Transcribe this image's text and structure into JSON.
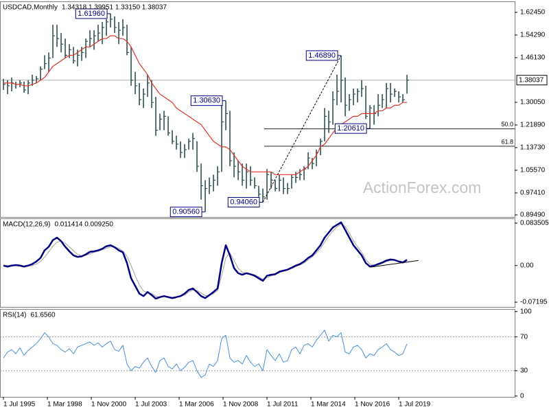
{
  "chart_data": [
    {
      "type": "ohlc",
      "title": "USDCAD,Monthly",
      "subtitle": "1.34318 1.39951 1.33150 1.38037",
      "watermark": "ActionForex.com",
      "color": "#2f4f4f",
      "ma_color": "#e0332b",
      "xlim": [
        1995.29,
        2026.54
      ],
      "xticks": [
        {
          "value": 1995.5,
          "label": "1 Jul 1995"
        },
        {
          "value": 1998.167,
          "label": "1 Mar 1998"
        },
        {
          "value": 2000.833,
          "label": "1 Nov 2000"
        },
        {
          "value": 2003.5,
          "label": "1 Jul 2003"
        },
        {
          "value": 2006.167,
          "label": "1 Mar 2006"
        },
        {
          "value": 2008.833,
          "label": "1 Nov 2008"
        },
        {
          "value": 2011.5,
          "label": "1 Jul 2011"
        },
        {
          "value": 2014.167,
          "label": "1 Mar 2014"
        },
        {
          "value": 2016.833,
          "label": "1 Nov 2016"
        },
        {
          "value": 2019.5,
          "label": "1 Jul 2019"
        }
      ],
      "ylim": [
        0.8875,
        1.664
      ],
      "yticks": [
        {
          "value": 1.6245,
          "label": "1.62450"
        },
        {
          "value": 1.5429,
          "label": "1.54290"
        },
        {
          "value": 1.4613,
          "label": "1.46130"
        },
        {
          "value": 1.3005,
          "label": "1.30050"
        },
        {
          "value": 1.2189,
          "label": "1.21890"
        },
        {
          "value": 1.1373,
          "label": "1.13730"
        },
        {
          "value": 1.0557,
          "label": "1.05570"
        },
        {
          "value": 0.9741,
          "label": "0.97410"
        },
        {
          "value": 0.8949,
          "label": "0.89490"
        }
      ],
      "x": [
        1995.5,
        1995.75,
        1996,
        1996.25,
        1996.5,
        1996.75,
        1997,
        1997.25,
        1997.5,
        1997.75,
        1998,
        1998.25,
        1998.5,
        1998.75,
        1999,
        1999.25,
        1999.5,
        1999.75,
        2000,
        2000.25,
        2000.5,
        2000.75,
        2001,
        2001.25,
        2001.5,
        2001.75,
        2002,
        2002.25,
        2002.5,
        2002.75,
        2003,
        2003.25,
        2003.5,
        2003.75,
        2004,
        2004.25,
        2004.5,
        2004.75,
        2005,
        2005.25,
        2005.5,
        2005.75,
        2006,
        2006.25,
        2006.5,
        2006.75,
        2007,
        2007.25,
        2007.5,
        2007.75,
        2008,
        2008.25,
        2008.5,
        2008.75,
        2009,
        2009.25,
        2009.5,
        2009.75,
        2010,
        2010.25,
        2010.5,
        2010.75,
        2011,
        2011.25,
        2011.5,
        2011.75,
        2012,
        2012.25,
        2012.5,
        2012.75,
        2013,
        2013.25,
        2013.5,
        2013.75,
        2014,
        2014.25,
        2014.5,
        2014.75,
        2015,
        2015.25,
        2015.5,
        2015.75,
        2016,
        2016.25,
        2016.5,
        2016.75,
        2017,
        2017.25,
        2017.5,
        2017.75,
        2018,
        2018.25,
        2018.5,
        2018.75,
        2019,
        2019.25,
        2019.5,
        2019.75,
        2020
      ],
      "high": [
        1.385,
        1.38,
        1.39,
        1.375,
        1.38,
        1.375,
        1.38,
        1.4,
        1.395,
        1.43,
        1.47,
        1.48,
        1.58,
        1.58,
        1.55,
        1.53,
        1.51,
        1.5,
        1.49,
        1.5,
        1.53,
        1.56,
        1.56,
        1.58,
        1.59,
        1.6,
        1.6196,
        1.61,
        1.59,
        1.6,
        1.58,
        1.5,
        1.41,
        1.37,
        1.35,
        1.4,
        1.38,
        1.32,
        1.26,
        1.27,
        1.25,
        1.2,
        1.18,
        1.16,
        1.15,
        1.17,
        1.19,
        1.16,
        1.08,
        1.02,
        1.03,
        1.04,
        1.07,
        1.29,
        1.3063,
        1.27,
        1.12,
        1.09,
        1.08,
        1.08,
        1.07,
        1.03,
        1.0,
        0.99,
        1.06,
        1.05,
        1.02,
        1.04,
        1.03,
        1.01,
        1.04,
        1.05,
        1.06,
        1.07,
        1.12,
        1.1,
        1.13,
        1.17,
        1.28,
        1.27,
        1.34,
        1.4,
        1.4689,
        1.39,
        1.33,
        1.35,
        1.35,
        1.38,
        1.36,
        1.29,
        1.29,
        1.33,
        1.33,
        1.37,
        1.37,
        1.35,
        1.34,
        1.33,
        1.39951
      ],
      "low": [
        1.345,
        1.33,
        1.34,
        1.35,
        1.355,
        1.335,
        1.33,
        1.36,
        1.37,
        1.38,
        1.42,
        1.41,
        1.46,
        1.5,
        1.48,
        1.46,
        1.46,
        1.44,
        1.43,
        1.45,
        1.46,
        1.5,
        1.49,
        1.52,
        1.51,
        1.54,
        1.57,
        1.55,
        1.51,
        1.54,
        1.47,
        1.36,
        1.33,
        1.29,
        1.28,
        1.32,
        1.28,
        1.18,
        1.2,
        1.2,
        1.18,
        1.15,
        1.13,
        1.1,
        1.1,
        1.13,
        1.13,
        1.05,
        0.95,
        0.9056,
        0.97,
        0.98,
        1.0,
        1.05,
        1.2,
        1.07,
        1.03,
        1.02,
        1.0,
        0.99,
        1.0,
        0.99,
        0.96,
        0.9406,
        0.95,
        0.99,
        0.98,
        0.98,
        0.97,
        0.97,
        0.99,
        1.01,
        1.02,
        1.02,
        1.06,
        1.06,
        1.07,
        1.11,
        1.16,
        1.19,
        1.22,
        1.29,
        1.3,
        1.25,
        1.27,
        1.29,
        1.3,
        1.32,
        1.24,
        1.2061,
        1.22,
        1.25,
        1.28,
        1.28,
        1.3,
        1.32,
        1.3,
        1.3,
        1.3315
      ],
      "close": [
        1.365,
        1.36,
        1.37,
        1.365,
        1.37,
        1.345,
        1.37,
        1.38,
        1.385,
        1.42,
        1.44,
        1.46,
        1.54,
        1.53,
        1.51,
        1.47,
        1.49,
        1.45,
        1.47,
        1.48,
        1.52,
        1.53,
        1.54,
        1.55,
        1.57,
        1.59,
        1.6,
        1.57,
        1.56,
        1.57,
        1.48,
        1.38,
        1.36,
        1.31,
        1.33,
        1.37,
        1.3,
        1.2,
        1.24,
        1.25,
        1.19,
        1.16,
        1.15,
        1.12,
        1.13,
        1.16,
        1.17,
        1.07,
        1.0,
        0.99,
        1.0,
        1.02,
        1.05,
        1.23,
        1.26,
        1.09,
        1.07,
        1.05,
        1.02,
        1.05,
        1.02,
        1.0,
        0.97,
        0.96,
        1.04,
        1.02,
        0.99,
        1.02,
        0.99,
        0.99,
        1.03,
        1.03,
        1.04,
        1.06,
        1.1,
        1.08,
        1.12,
        1.16,
        1.25,
        1.23,
        1.31,
        1.34,
        1.38,
        1.29,
        1.31,
        1.33,
        1.34,
        1.35,
        1.25,
        1.28,
        1.26,
        1.29,
        1.31,
        1.35,
        1.33,
        1.34,
        1.32,
        1.31,
        1.38037
      ],
      "ma": [
        1.37,
        1.37,
        1.37,
        1.365,
        1.365,
        1.36,
        1.36,
        1.365,
        1.37,
        1.38,
        1.39,
        1.41,
        1.43,
        1.44,
        1.45,
        1.46,
        1.47,
        1.47,
        1.48,
        1.49,
        1.5,
        1.5,
        1.51,
        1.52,
        1.53,
        1.53,
        1.54,
        1.54,
        1.53,
        1.53,
        1.52,
        1.5,
        1.47,
        1.44,
        1.42,
        1.4,
        1.37,
        1.35,
        1.33,
        1.32,
        1.31,
        1.3,
        1.28,
        1.27,
        1.26,
        1.25,
        1.24,
        1.23,
        1.22,
        1.2,
        1.18,
        1.16,
        1.15,
        1.14,
        1.14,
        1.13,
        1.11,
        1.09,
        1.07,
        1.06,
        1.05,
        1.05,
        1.05,
        1.05,
        1.05,
        1.05,
        1.04,
        1.04,
        1.04,
        1.04,
        1.04,
        1.04,
        1.05,
        1.06,
        1.07,
        1.09,
        1.11,
        1.14,
        1.15,
        1.17,
        1.19,
        1.21,
        1.22,
        1.23,
        1.24,
        1.25,
        1.25,
        1.26,
        1.26,
        1.26,
        1.26,
        1.27,
        1.27,
        1.28,
        1.28,
        1.29,
        1.29,
        1.3,
        1.3
      ],
      "annotations": [
        {
          "value": 1.6196,
          "label": "1.61960",
          "x": 2002
        },
        {
          "value": 1.3063,
          "label": "1.30630",
          "x": 2009
        },
        {
          "value": 0.9056,
          "label": "0.90560",
          "x": 2007.75
        },
        {
          "value": 0.9406,
          "label": "0.94060",
          "x": 2011.25
        },
        {
          "value": 1.4689,
          "label": "1.46890",
          "x": 2016
        },
        {
          "value": 1.2061,
          "label": "1.20610",
          "x": 2017.75
        }
      ],
      "fib_start": 2011.33,
      "fib_levels": [
        {
          "value": 1.2048,
          "label": "50.0"
        },
        {
          "value": 1.1424,
          "label": "61.8"
        }
      ],
      "trendline": {
        "x": [
          2011.25,
          2016
        ],
        "y": [
          0.9406,
          1.4689
        ]
      }
    },
    {
      "type": "macd",
      "title": "MACD(12,26,9)",
      "subtitle": "0.011414 0.009250",
      "color": "#000080",
      "signal_color": "#a8a0a0",
      "ylim": [
        -0.0813,
        0.0928
      ],
      "yticks": [
        0.083505,
        {
          "value": 0,
          "label": "0.00"
        },
        -0.07195
      ],
      "values": [
        0.0,
        -0.002,
        0.0,
        0.001,
        0.0,
        -0.002,
        0.0,
        0.003,
        0.008,
        0.015,
        0.03,
        0.037,
        0.05,
        0.055,
        0.048,
        0.037,
        0.028,
        0.02,
        0.017,
        0.018,
        0.022,
        0.027,
        0.028,
        0.03,
        0.033,
        0.038,
        0.04,
        0.036,
        0.03,
        0.026,
        0.005,
        -0.025,
        -0.04,
        -0.055,
        -0.06,
        -0.052,
        -0.058,
        -0.065,
        -0.062,
        -0.06,
        -0.062,
        -0.064,
        -0.062,
        -0.06,
        -0.055,
        -0.048,
        -0.045,
        -0.052,
        -0.06,
        -0.064,
        -0.058,
        -0.052,
        -0.045,
        0.005,
        0.04,
        0.02,
        -0.005,
        -0.015,
        -0.018,
        -0.015,
        -0.017,
        -0.02,
        -0.025,
        -0.03,
        -0.02,
        -0.018,
        -0.017,
        -0.012,
        -0.01,
        -0.008,
        -0.004,
        0.0,
        0.003,
        0.008,
        0.015,
        0.02,
        0.03,
        0.04,
        0.055,
        0.065,
        0.075,
        0.08,
        0.085,
        0.07,
        0.055,
        0.04,
        0.03,
        0.02,
        0.005,
        -0.002,
        0.0,
        0.003,
        0.006,
        0.01,
        0.012,
        0.011,
        0.008,
        0.006,
        0.011414
      ],
      "signal": [
        0.0,
        0.0,
        0.0,
        0.0,
        0.0,
        -0.001,
        -0.001,
        0.0,
        0.003,
        0.008,
        0.017,
        0.027,
        0.038,
        0.046,
        0.048,
        0.044,
        0.037,
        0.029,
        0.022,
        0.019,
        0.02,
        0.023,
        0.026,
        0.028,
        0.031,
        0.034,
        0.037,
        0.037,
        0.034,
        0.029,
        0.018,
        0.0,
        -0.02,
        -0.038,
        -0.05,
        -0.053,
        -0.055,
        -0.06,
        -0.062,
        -0.061,
        -0.061,
        -0.062,
        -0.062,
        -0.061,
        -0.058,
        -0.052,
        -0.048,
        -0.049,
        -0.054,
        -0.059,
        -0.059,
        -0.055,
        -0.049,
        -0.02,
        0.015,
        0.025,
        0.01,
        -0.005,
        -0.013,
        -0.015,
        -0.016,
        -0.018,
        -0.022,
        -0.027,
        -0.024,
        -0.02,
        -0.018,
        -0.014,
        -0.011,
        -0.009,
        -0.006,
        -0.002,
        0.001,
        0.005,
        0.011,
        0.017,
        0.025,
        0.034,
        0.046,
        0.058,
        0.068,
        0.076,
        0.082,
        0.077,
        0.064,
        0.049,
        0.037,
        0.026,
        0.012,
        0.003,
        0.0,
        0.001,
        0.004,
        0.008,
        0.01,
        0.011,
        0.009,
        0.008,
        0.00925
      ],
      "trendline": {
        "x": [
          2017.8,
          2020.7
        ],
        "y": [
          -0.003,
          0.01
        ]
      }
    },
    {
      "type": "rsi",
      "title": "RSI(14)",
      "subtitle": "61.6560",
      "color": "#4a8fd8",
      "ylim": [
        -1,
        103
      ],
      "yticks": [
        100,
        70,
        30,
        0
      ],
      "levels": [
        70,
        30
      ],
      "values": [
        45,
        52,
        55,
        50,
        57,
        48,
        54,
        58,
        62,
        68,
        75,
        70,
        62,
        60,
        55,
        52,
        56,
        50,
        58,
        60,
        62,
        64,
        60,
        63,
        58,
        62,
        65,
        55,
        53,
        60,
        38,
        30,
        35,
        33,
        40,
        45,
        35,
        28,
        42,
        45,
        35,
        32,
        38,
        30,
        34,
        40,
        42,
        30,
        22,
        25,
        38,
        35,
        42,
        68,
        72,
        45,
        40,
        42,
        38,
        48,
        40,
        35,
        38,
        30,
        55,
        48,
        42,
        50,
        40,
        42,
        55,
        58,
        50,
        60,
        62,
        58,
        66,
        72,
        78,
        65,
        72,
        70,
        75,
        52,
        50,
        58,
        60,
        55,
        45,
        50,
        48,
        55,
        58,
        62,
        55,
        52,
        48,
        50,
        61.656
      ]
    }
  ]
}
